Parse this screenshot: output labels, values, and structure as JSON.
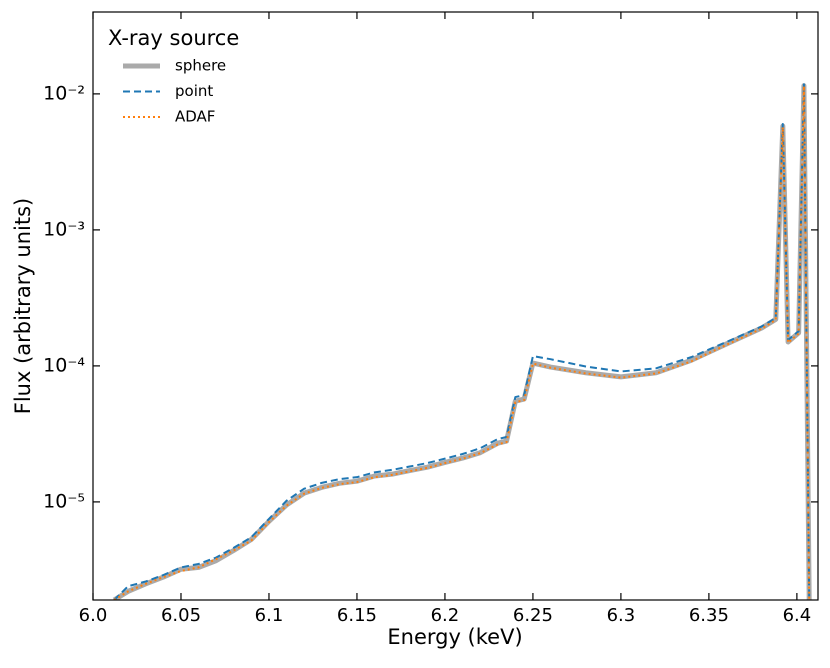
{
  "chart_data": {
    "type": "line",
    "xlabel": "Energy (keV)",
    "ylabel": "Flux (arbitrary units)",
    "legend_title": "X-ray source",
    "legend": "upper left",
    "log_y": true,
    "xlim": [
      6.0,
      6.412
    ],
    "ylim": [
      1.9e-06,
      0.04
    ],
    "xticks": [
      {
        "value": 6.0,
        "label": "6.0"
      },
      6.05,
      6.1,
      6.15,
      6.2,
      6.25,
      6.3,
      6.35,
      6.4
    ],
    "yticks": [
      {
        "value": 1e-05,
        "label": "10⁻⁵"
      },
      {
        "value": 0.0001,
        "label": "10⁻⁴"
      },
      {
        "value": 0.001,
        "label": "10⁻³"
      },
      {
        "value": 0.01,
        "label": "10⁻²"
      }
    ],
    "x": [
      6.012,
      6.02,
      6.03,
      6.04,
      6.05,
      6.06,
      6.07,
      6.08,
      6.09,
      6.1,
      6.11,
      6.12,
      6.13,
      6.14,
      6.15,
      6.16,
      6.17,
      6.18,
      6.19,
      6.2,
      6.21,
      6.22,
      6.23,
      6.235,
      6.24,
      6.245,
      6.25,
      6.26,
      6.28,
      6.3,
      6.32,
      6.34,
      6.36,
      6.38,
      6.388,
      6.392,
      6.395,
      6.401,
      6.404,
      6.407
    ],
    "series": [
      {
        "name": "sphere",
        "color": "#aaaaaa",
        "linestyle": "solid",
        "values": [
          1.9e-06,
          2.2e-06,
          2.5e-06,
          2.8e-06,
          3.2e-06,
          3.3e-06,
          3.7e-06,
          4.4e-06,
          5.3e-06,
          7.2e-06,
          9.5e-06,
          1.16e-05,
          1.28e-05,
          1.37e-05,
          1.42e-05,
          1.55e-05,
          1.6e-05,
          1.7e-05,
          1.8e-05,
          1.95e-05,
          2.1e-05,
          2.3e-05,
          2.7e-05,
          2.8e-05,
          5.5e-05,
          5.7e-05,
          0.000105,
          9.8e-05,
          8.9e-05,
          8.3e-05,
          8.9e-05,
          0.00011,
          0.000145,
          0.00019,
          0.00022,
          0.0058,
          0.00015,
          0.000175,
          0.0115,
          1.9e-06
        ]
      },
      {
        "name": "point",
        "color": "#1f77b4",
        "linestyle": "dashed",
        "values": [
          1.9e-06,
          2.4e-06,
          2.6e-06,
          2.9e-06,
          3.3e-06,
          3.5e-06,
          3.9e-06,
          4.6e-06,
          5.5e-06,
          7.5e-06,
          1.02e-05,
          1.25e-05,
          1.38e-05,
          1.47e-05,
          1.52e-05,
          1.65e-05,
          1.72e-05,
          1.82e-05,
          1.93e-05,
          2.08e-05,
          2.25e-05,
          2.48e-05,
          2.9e-05,
          3e-05,
          5.9e-05,
          6.1e-05,
          0.000118,
          0.000112,
          9.9e-05,
          9.1e-05,
          9.6e-05,
          0.000116,
          0.00015,
          0.000195,
          0.000225,
          0.006,
          0.000155,
          0.00018,
          0.012,
          1.9e-06
        ]
      },
      {
        "name": "ADAF",
        "color": "#ff7f0e",
        "linestyle": "dotted",
        "values": [
          1.9e-06,
          2.2e-06,
          2.5e-06,
          2.8e-06,
          3.1e-06,
          3.3e-06,
          3.8e-06,
          4.4e-06,
          5.2e-06,
          7.1e-06,
          9.4e-06,
          1.15e-05,
          1.27e-05,
          1.35e-05,
          1.4e-05,
          1.52e-05,
          1.58e-05,
          1.68e-05,
          1.78e-05,
          1.93e-05,
          2.08e-05,
          2.28e-05,
          2.65e-05,
          2.75e-05,
          5.4e-05,
          5.6e-05,
          0.000104,
          9.7e-05,
          8.8e-05,
          8.2e-05,
          8.8e-05,
          0.000108,
          0.000143,
          0.000188,
          0.000218,
          0.0057,
          0.000148,
          0.000173,
          0.0114,
          1.9e-06
        ]
      }
    ]
  }
}
